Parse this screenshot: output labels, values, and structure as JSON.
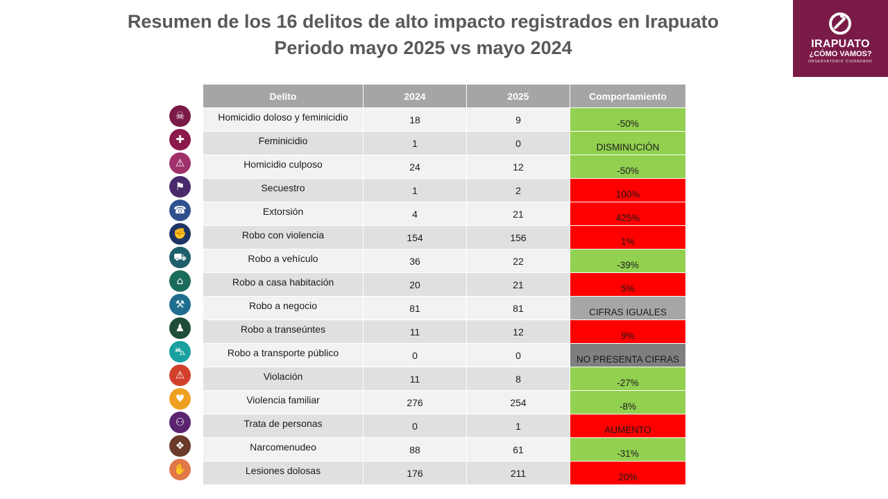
{
  "title": {
    "line1": "Resumen de los 16 delitos de alto impacto registrados en Irapuato",
    "line2": "Periodo mayo 2025 vs mayo 2024"
  },
  "logo": {
    "name": "IRAPUATO",
    "tagline": "¿CÓMO VAMOS?",
    "subtitle": "OBSERVATORIO CIUDADANO",
    "color": "#7a1b47"
  },
  "table": {
    "headers": [
      "Delito",
      "2024",
      "2025",
      "Comportamiento"
    ],
    "rows": [
      {
        "delito": "Homicidio doloso y feminicidio",
        "y2024": "18",
        "y2025": "9",
        "comportamiento": "-50%",
        "status": "down",
        "icon": "homicide-icon",
        "icon_color": "#7a1b47"
      },
      {
        "delito": "Feminicidio",
        "y2024": "1",
        "y2025": "0",
        "comportamiento": "DISMINUCIÓN",
        "status": "down",
        "icon": "cross-icon",
        "icon_color": "#8b1a4a"
      },
      {
        "delito": "Homicidio culposo",
        "y2024": "24",
        "y2025": "12",
        "comportamiento": "-50%",
        "status": "down",
        "icon": "accident-icon",
        "icon_color": "#a0316a"
      },
      {
        "delito": "Secuestro",
        "y2024": "1",
        "y2025": "2",
        "comportamiento": "100%",
        "status": "up",
        "icon": "kidnapping-icon",
        "icon_color": "#4b2a6b"
      },
      {
        "delito": "Extorsión",
        "y2024": "4",
        "y2025": "21",
        "comportamiento": "425%",
        "status": "up",
        "icon": "extortion-icon",
        "icon_color": "#2f4f8f"
      },
      {
        "delito": "Robo con violencia",
        "y2024": "154",
        "y2025": "156",
        "comportamiento": "1%",
        "status": "up",
        "icon": "violent-robbery-icon",
        "icon_color": "#1f3466"
      },
      {
        "delito": "Robo a vehículo",
        "y2024": "36",
        "y2025": "22",
        "comportamiento": "-39%",
        "status": "down",
        "icon": "car-icon",
        "icon_color": "#1f5f6b"
      },
      {
        "delito": "Robo a casa habitación",
        "y2024": "20",
        "y2025": "21",
        "comportamiento": "5%",
        "status": "up",
        "icon": "house-robbery-icon",
        "icon_color": "#1b6b5a"
      },
      {
        "delito": "Robo a negocio",
        "y2024": "81",
        "y2025": "81",
        "comportamiento": "CIFRAS IGUALES",
        "status": "equal",
        "icon": "business-robbery-icon",
        "icon_color": "#1f6e8f"
      },
      {
        "delito": "Robo a transeúntes",
        "y2024": "11",
        "y2025": "12",
        "comportamiento": "9%",
        "status": "up",
        "icon": "pedestrian-robbery-icon",
        "icon_color": "#1e4d3a"
      },
      {
        "delito": "Robo a transporte público",
        "y2024": "0",
        "y2025": "0",
        "comportamiento": "NO PRESENTA CIFRAS",
        "status": "none",
        "icon": "bus-icon",
        "icon_color": "#1aa0a0"
      },
      {
        "delito": "Violación",
        "y2024": "11",
        "y2025": "8",
        "comportamiento": "-27%",
        "status": "down",
        "icon": "violation-icon",
        "icon_color": "#d0402a"
      },
      {
        "delito": "Violencia familiar",
        "y2024": "276",
        "y2025": "254",
        "comportamiento": "-8%",
        "status": "down",
        "icon": "family-violence-icon",
        "icon_color": "#f0a020"
      },
      {
        "delito": "Trata de personas",
        "y2024": "0",
        "y2025": "1",
        "comportamiento": "AUMENTO",
        "status": "up",
        "icon": "trafficking-icon",
        "icon_color": "#5a2470"
      },
      {
        "delito": "Narcomenudeo",
        "y2024": "88",
        "y2025": "61",
        "comportamiento": "-31%",
        "status": "down",
        "icon": "drugs-icon",
        "icon_color": "#6b3a2a"
      },
      {
        "delito": "Lesiones dolosas",
        "y2024": "176",
        "y2025": "211",
        "comportamiento": "20%",
        "status": "up",
        "icon": "injury-icon",
        "icon_color": "#e0784a"
      }
    ]
  },
  "colors": {
    "down": "#92d050",
    "up": "#ff0000",
    "equal": "#a6a6a6",
    "none": "#7f7f7f",
    "header": "#a5a5a5"
  }
}
